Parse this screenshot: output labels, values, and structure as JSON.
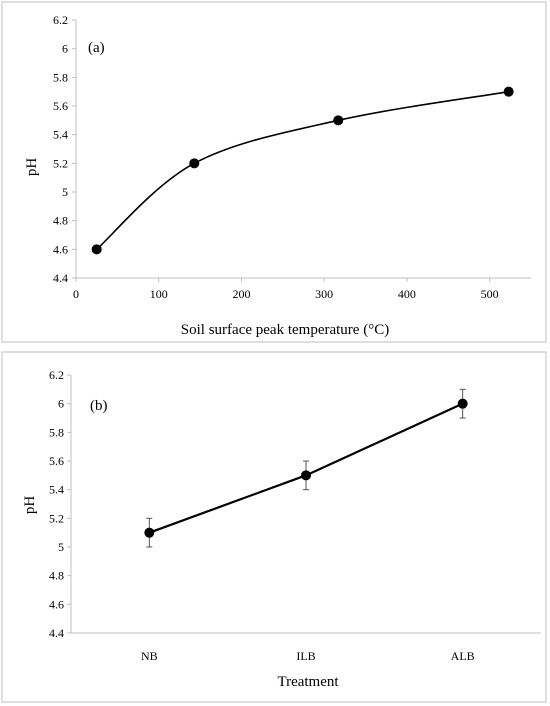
{
  "chart_data": [
    {
      "type": "line",
      "panel_label": "(a)",
      "xlabel": "Soil surface peak temperature (°C)",
      "ylabel": "pH",
      "xlim": [
        0,
        550
      ],
      "ylim": [
        4.4,
        6.2
      ],
      "x_ticks": [
        "0",
        "100",
        "200",
        "300",
        "400",
        "500"
      ],
      "y_ticks": [
        "4.4",
        "4.6",
        "4.8",
        "5",
        "5.2",
        "5.4",
        "5.6",
        "5.8",
        "6",
        "6.2"
      ],
      "smoothed": true,
      "grid": false,
      "series": [
        {
          "x": [
            25,
            143,
            317,
            523
          ],
          "values": [
            4.6,
            5.2,
            5.5,
            5.7
          ]
        }
      ]
    },
    {
      "type": "line",
      "panel_label": "(b)",
      "xlabel": "Treatment",
      "ylabel": "pH",
      "categories": [
        "NB",
        "ILB",
        "ALB"
      ],
      "ylim": [
        4.4,
        6.2
      ],
      "y_ticks": [
        "4.4",
        "4.6",
        "4.8",
        "5",
        "5.2",
        "5.4",
        "5.6",
        "5.8",
        "6",
        "6.2"
      ],
      "grid": false,
      "series": [
        {
          "values": [
            5.1,
            5.5,
            6.0
          ],
          "error": [
            0.1,
            0.1,
            0.1
          ]
        }
      ]
    }
  ]
}
